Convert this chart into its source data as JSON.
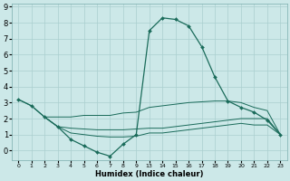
{
  "xlabel": "Humidex (Indice chaleur)",
  "bg_color": "#cce8e8",
  "grid_color": "#aacfcf",
  "line_color": "#1a6b5a",
  "ylim": [
    -0.6,
    9.2
  ],
  "line1_x": [
    0,
    1,
    2,
    3,
    4,
    5,
    6,
    7,
    8,
    9,
    10,
    11,
    12,
    13,
    14,
    15,
    16,
    17,
    18,
    19,
    20
  ],
  "line1_y": [
    3.2,
    2.8,
    2.1,
    1.5,
    0.7,
    0.3,
    -0.1,
    -0.35,
    0.4,
    1.0,
    7.5,
    8.3,
    8.2,
    7.8,
    6.5,
    4.6,
    3.1,
    2.7,
    2.4,
    1.9,
    1.0
  ],
  "line2_x": [
    0,
    1,
    2,
    3,
    4,
    5,
    6,
    7,
    8,
    9,
    10,
    11,
    12,
    13,
    14,
    15,
    16,
    17,
    18,
    19,
    20
  ],
  "line2_y": [
    3.2,
    2.8,
    2.1,
    2.1,
    2.1,
    2.2,
    2.2,
    2.2,
    2.35,
    2.4,
    2.7,
    2.8,
    2.9,
    3.0,
    3.05,
    3.1,
    3.1,
    3.0,
    2.7,
    2.5,
    1.0
  ],
  "line3_x": [
    2,
    3,
    4,
    5,
    6,
    7,
    8,
    9,
    10,
    11,
    12,
    13,
    14,
    15,
    16,
    17,
    18,
    19,
    20
  ],
  "line3_y": [
    2.1,
    1.5,
    1.4,
    1.35,
    1.3,
    1.3,
    1.3,
    1.35,
    1.4,
    1.4,
    1.5,
    1.6,
    1.7,
    1.8,
    1.9,
    2.0,
    2.0,
    2.0,
    1.0
  ],
  "line4_x": [
    2,
    3,
    4,
    5,
    6,
    7,
    8,
    9,
    10,
    11,
    12,
    13,
    14,
    15,
    16,
    17,
    18,
    19,
    20
  ],
  "line4_y": [
    2.1,
    1.5,
    1.1,
    1.0,
    0.9,
    0.85,
    0.85,
    0.9,
    1.1,
    1.1,
    1.2,
    1.3,
    1.4,
    1.5,
    1.6,
    1.7,
    1.6,
    1.6,
    1.0
  ],
  "xtick_positions": [
    0,
    1,
    2,
    3,
    4,
    5,
    6,
    7,
    8,
    9,
    10,
    11,
    12,
    13,
    14,
    15,
    16,
    17,
    18,
    19,
    20
  ],
  "xtick_labels": [
    "0",
    "1",
    "2",
    "3",
    "4",
    "5",
    "6",
    "7",
    "8",
    "9",
    "13",
    "14",
    "15",
    "16",
    "17",
    "18",
    "19",
    "20",
    "21",
    "22",
    "23"
  ],
  "xlim": [
    -0.5,
    20.5
  ]
}
